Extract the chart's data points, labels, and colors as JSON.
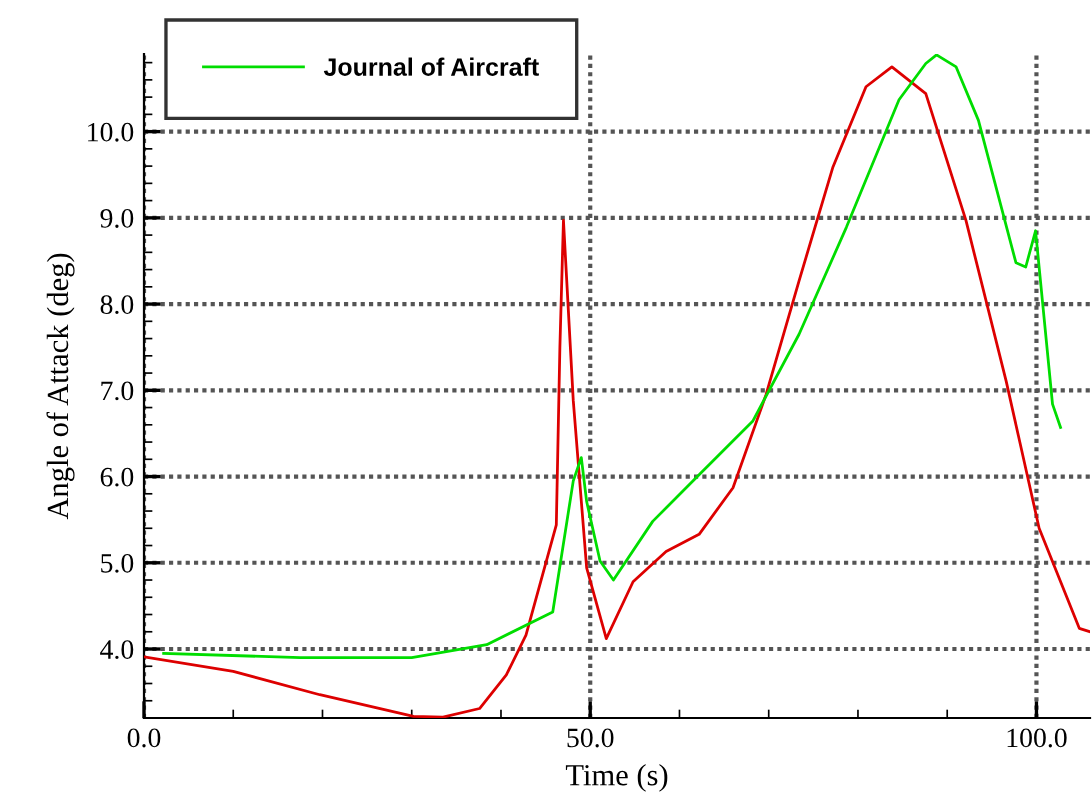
{
  "chart_data": {
    "type": "line",
    "xlabel": "Time (s)",
    "ylabel": "Angle of Attack (deg)",
    "xlim": [
      0,
      106
    ],
    "ylim": [
      3.2,
      10.9
    ],
    "xticks": [
      {
        "value": 0,
        "label": "0.0"
      },
      {
        "value": 50,
        "label": "50.0"
      },
      {
        "value": 100,
        "label": "100.0"
      }
    ],
    "yticks": [
      {
        "value": 4,
        "label": "4.0"
      },
      {
        "value": 5,
        "label": "5.0"
      },
      {
        "value": 6,
        "label": "6.0"
      },
      {
        "value": 7,
        "label": "7.0"
      },
      {
        "value": 8,
        "label": "8.0"
      },
      {
        "value": 9,
        "label": "9.0"
      },
      {
        "value": 10,
        "label": "10.0"
      }
    ],
    "grid": true,
    "legend": "top left",
    "line_style": "solid",
    "marker": "none",
    "series": [
      {
        "color": "#dd0000",
        "x": [
          0,
          10,
          19.7,
          30.2,
          33.5,
          37.6,
          40.6,
          42.8,
          46.2,
          46.6,
          47.0,
          48.1,
          49.6,
          51.8,
          54.8,
          58.5,
          62.2,
          66.0,
          69.7,
          73.4,
          77.2,
          80.9,
          83.8,
          87.6,
          92.1,
          96.6,
          100.3,
          104.8,
          106
        ],
        "values": [
          3.91,
          3.74,
          3.47,
          3.22,
          3.21,
          3.31,
          3.7,
          4.16,
          5.44,
          7.5,
          8.97,
          6.88,
          4.94,
          4.12,
          4.78,
          5.13,
          5.33,
          5.87,
          6.95,
          8.27,
          9.59,
          10.52,
          10.75,
          10.44,
          8.97,
          7.11,
          5.4,
          4.24,
          4.2
        ]
      },
      {
        "name": "Journal of Aircraft",
        "color": "#00dd00",
        "x": [
          2.2,
          17.5,
          30,
          38.4,
          45.8,
          48.1,
          49.0,
          49.6,
          51.1,
          52.6,
          57.0,
          62.2,
          68.2,
          73.4,
          78.7,
          84.6,
          87.6,
          88.8,
          91.0,
          93.5,
          97.7,
          98.8,
          99.9,
          101.8,
          102.7
        ],
        "values": [
          3.95,
          3.9,
          3.9,
          4.05,
          4.43,
          5.95,
          6.22,
          5.71,
          5.02,
          4.8,
          5.48,
          6.02,
          6.64,
          7.65,
          8.89,
          10.37,
          10.79,
          10.89,
          10.75,
          10.13,
          8.48,
          8.43,
          8.85,
          6.84,
          6.57
        ]
      }
    ]
  }
}
